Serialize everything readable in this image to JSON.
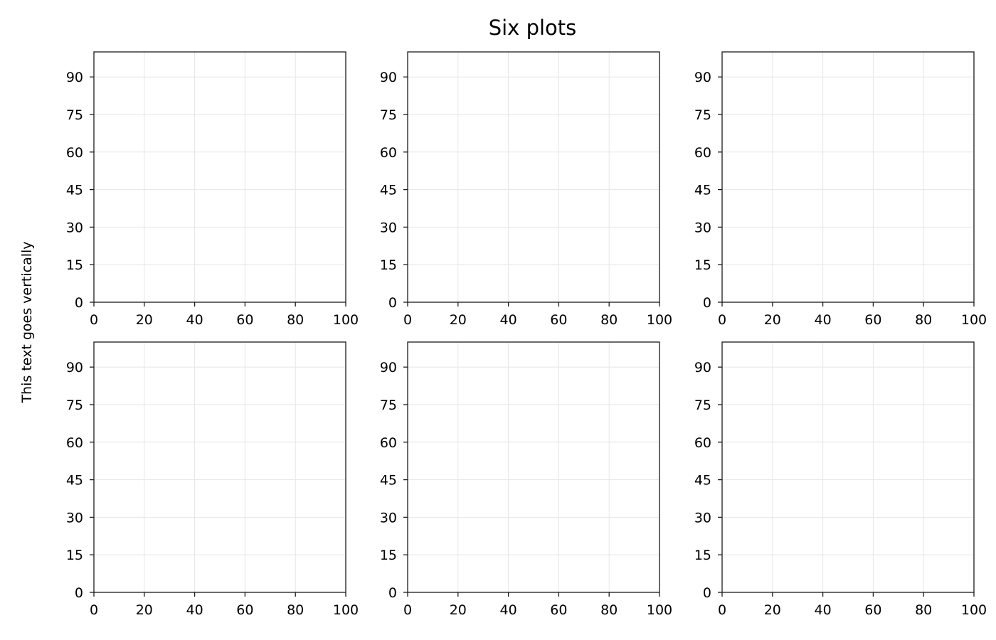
{
  "figure": {
    "title": "Six plots",
    "shared_ylabel": "This text goes vertically"
  },
  "chart_data": [
    {
      "type": "scatter",
      "title": "",
      "xlabel": "",
      "ylabel": "",
      "xlim": [
        0,
        100
      ],
      "ylim": [
        0,
        100
      ],
      "xticks": [
        0,
        20,
        40,
        60,
        80,
        100
      ],
      "yticks": [
        0,
        15,
        30,
        45,
        60,
        75,
        90
      ],
      "grid": true,
      "series": []
    },
    {
      "type": "scatter",
      "title": "",
      "xlabel": "",
      "ylabel": "",
      "xlim": [
        0,
        100
      ],
      "ylim": [
        0,
        100
      ],
      "xticks": [
        0,
        20,
        40,
        60,
        80,
        100
      ],
      "yticks": [
        0,
        15,
        30,
        45,
        60,
        75,
        90
      ],
      "grid": true,
      "series": []
    },
    {
      "type": "scatter",
      "title": "",
      "xlabel": "",
      "ylabel": "",
      "xlim": [
        0,
        100
      ],
      "ylim": [
        0,
        100
      ],
      "xticks": [
        0,
        20,
        40,
        60,
        80,
        100
      ],
      "yticks": [
        0,
        15,
        30,
        45,
        60,
        75,
        90
      ],
      "grid": true,
      "series": []
    },
    {
      "type": "scatter",
      "title": "",
      "xlabel": "",
      "ylabel": "",
      "xlim": [
        0,
        100
      ],
      "ylim": [
        0,
        100
      ],
      "xticks": [
        0,
        20,
        40,
        60,
        80,
        100
      ],
      "yticks": [
        0,
        15,
        30,
        45,
        60,
        75,
        90
      ],
      "grid": true,
      "series": []
    },
    {
      "type": "scatter",
      "title": "",
      "xlabel": "",
      "ylabel": "",
      "xlim": [
        0,
        100
      ],
      "ylim": [
        0,
        100
      ],
      "xticks": [
        0,
        20,
        40,
        60,
        80,
        100
      ],
      "yticks": [
        0,
        15,
        30,
        45,
        60,
        75,
        90
      ],
      "grid": true,
      "series": []
    },
    {
      "type": "scatter",
      "title": "",
      "xlabel": "",
      "ylabel": "",
      "xlim": [
        0,
        100
      ],
      "ylim": [
        0,
        100
      ],
      "xticks": [
        0,
        20,
        40,
        60,
        80,
        100
      ],
      "yticks": [
        0,
        15,
        30,
        45,
        60,
        75,
        90
      ],
      "grid": true,
      "series": []
    }
  ],
  "colors": {
    "frame": "#1a1a1a",
    "grid": "#e6e6e6",
    "text": "#000000"
  }
}
